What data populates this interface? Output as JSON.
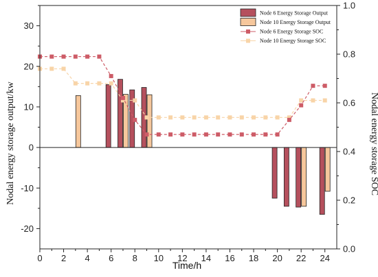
{
  "chart_data": {
    "type": "bar",
    "xlabel": "Time/h",
    "ylabel": "Nodal energy storage output/kw",
    "y2label": "Nodal energy storage SOC",
    "xlim": [
      0,
      25
    ],
    "ylim": [
      -25,
      35
    ],
    "y2lim": [
      0.0,
      1.0
    ],
    "x_ticks": [
      "0",
      "2",
      "4",
      "6",
      "8",
      "10",
      "12",
      "14",
      "16",
      "18",
      "20",
      "22",
      "24"
    ],
    "y_ticks": [
      "-20",
      "-10",
      "0",
      "10",
      "20",
      "30"
    ],
    "y2_ticks": [
      "0.0",
      "0.2",
      "0.4",
      "0.6",
      "0.8",
      "1.0"
    ],
    "grid": false,
    "legend_position": "top-right",
    "legend": [
      "Node 6 Energy Storage Output",
      "Node 10 Energy Storage Output",
      "Node 6 Energy Storage SOC",
      "Node 10 Energy Storage SOC"
    ],
    "colors": {
      "node6_bar": "#b5505d",
      "node10_bar": "#f6c79c",
      "node6_soc": "#cd5c67",
      "node10_soc": "#f8d4a8"
    },
    "bars_node6": [
      {
        "x": 6,
        "value": 15.5
      },
      {
        "x": 7,
        "value": 16.8
      },
      {
        "x": 8,
        "value": 14.2
      },
      {
        "x": 9,
        "value": 14.8
      },
      {
        "x": 20,
        "value": -12.5
      },
      {
        "x": 21,
        "value": -14.5
      },
      {
        "x": 22,
        "value": -14.7
      },
      {
        "x": 24,
        "value": -16.5
      }
    ],
    "bars_node10": [
      {
        "x": 3,
        "value": 12.8
      },
      {
        "x": 7,
        "value": 13.1
      },
      {
        "x": 9,
        "value": 13.0
      },
      {
        "x": 22,
        "value": -14.5
      },
      {
        "x": 24,
        "value": -10.8
      }
    ],
    "soc_node6": [
      {
        "x": 0,
        "y": 0.79
      },
      {
        "x": 1,
        "y": 0.79
      },
      {
        "x": 2,
        "y": 0.79
      },
      {
        "x": 3,
        "y": 0.79
      },
      {
        "x": 4,
        "y": 0.79
      },
      {
        "x": 5,
        "y": 0.79
      },
      {
        "x": 6,
        "y": 0.71
      },
      {
        "x": 7,
        "y": 0.62
      },
      {
        "x": 8,
        "y": 0.53
      },
      {
        "x": 9,
        "y": 0.47
      },
      {
        "x": 10,
        "y": 0.47
      },
      {
        "x": 11,
        "y": 0.47
      },
      {
        "x": 12,
        "y": 0.47
      },
      {
        "x": 13,
        "y": 0.47
      },
      {
        "x": 14,
        "y": 0.47
      },
      {
        "x": 15,
        "y": 0.47
      },
      {
        "x": 16,
        "y": 0.47
      },
      {
        "x": 17,
        "y": 0.47
      },
      {
        "x": 18,
        "y": 0.47
      },
      {
        "x": 19,
        "y": 0.47
      },
      {
        "x": 20,
        "y": 0.47
      },
      {
        "x": 21,
        "y": 0.53
      },
      {
        "x": 22,
        "y": 0.59
      },
      {
        "x": 23,
        "y": 0.67
      },
      {
        "x": 24,
        "y": 0.67
      }
    ],
    "soc_node10": [
      {
        "x": 0,
        "y": 0.74
      },
      {
        "x": 1,
        "y": 0.74
      },
      {
        "x": 2,
        "y": 0.74
      },
      {
        "x": 3,
        "y": 0.68
      },
      {
        "x": 4,
        "y": 0.68
      },
      {
        "x": 5,
        "y": 0.68
      },
      {
        "x": 6,
        "y": 0.68
      },
      {
        "x": 7,
        "y": 0.61
      },
      {
        "x": 8,
        "y": 0.61
      },
      {
        "x": 9,
        "y": 0.54
      },
      {
        "x": 10,
        "y": 0.54
      },
      {
        "x": 11,
        "y": 0.54
      },
      {
        "x": 12,
        "y": 0.54
      },
      {
        "x": 13,
        "y": 0.54
      },
      {
        "x": 14,
        "y": 0.54
      },
      {
        "x": 15,
        "y": 0.54
      },
      {
        "x": 16,
        "y": 0.54
      },
      {
        "x": 17,
        "y": 0.54
      },
      {
        "x": 18,
        "y": 0.54
      },
      {
        "x": 19,
        "y": 0.54
      },
      {
        "x": 20,
        "y": 0.54
      },
      {
        "x": 21,
        "y": 0.54
      },
      {
        "x": 22,
        "y": 0.61
      },
      {
        "x": 23,
        "y": 0.61
      },
      {
        "x": 24,
        "y": 0.61
      }
    ]
  }
}
